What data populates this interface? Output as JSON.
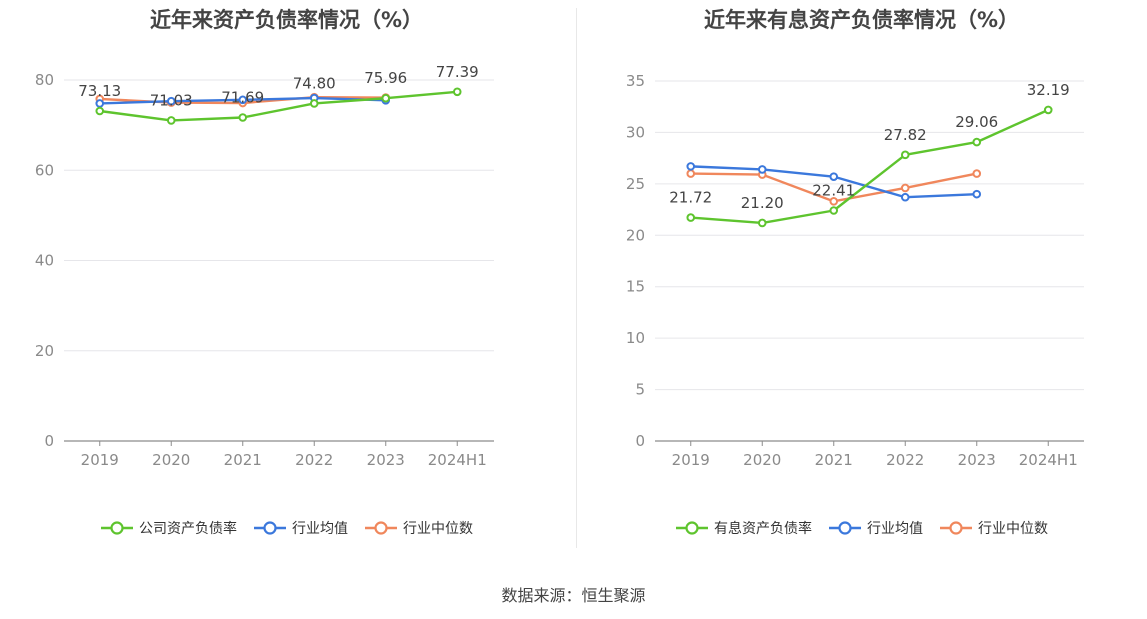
{
  "source_label": "数据来源：恒生聚源",
  "chart_data": [
    {
      "type": "line",
      "title": "近年来资产负债率情况（%）",
      "categories": [
        "2019",
        "2020",
        "2021",
        "2022",
        "2023",
        "2024H1"
      ],
      "ylim": [
        0,
        80
      ],
      "yticks": [
        0,
        20,
        40,
        60,
        80
      ],
      "grid": true,
      "legend_position": "bottom",
      "series": [
        {
          "name": "公司资产负债率",
          "color": "#5ec42e",
          "values": [
            73.13,
            71.03,
            71.69,
            74.8,
            75.96,
            77.39
          ],
          "labels": [
            "73.13",
            "71.03",
            "71.69",
            "74.80",
            "75.96",
            "77.39"
          ]
        },
        {
          "name": "行业均值",
          "color": "#3b78dc",
          "values": [
            74.8,
            75.3,
            75.6,
            76.0,
            75.5,
            null
          ]
        },
        {
          "name": "行业中位数",
          "color": "#f0875c",
          "values": [
            75.8,
            75.0,
            74.9,
            76.2,
            76.1,
            null
          ]
        }
      ]
    },
    {
      "type": "line",
      "title": "近年来有息资产负债率情况（%）",
      "categories": [
        "2019",
        "2020",
        "2021",
        "2022",
        "2023",
        "2024H1"
      ],
      "ylim": [
        0,
        35
      ],
      "yticks": [
        0,
        5,
        10,
        15,
        20,
        25,
        30,
        35
      ],
      "grid": true,
      "legend_position": "bottom",
      "series": [
        {
          "name": "有息资产负债率",
          "color": "#5ec42e",
          "values": [
            21.72,
            21.2,
            22.41,
            27.82,
            29.06,
            32.19
          ],
          "labels": [
            "21.72",
            "21.20",
            "22.41",
            "27.82",
            "29.06",
            "32.19"
          ]
        },
        {
          "name": "行业均值",
          "color": "#3b78dc",
          "values": [
            26.7,
            26.4,
            25.7,
            23.7,
            24.0,
            null
          ]
        },
        {
          "name": "行业中位数",
          "color": "#f0875c",
          "values": [
            26.0,
            25.9,
            23.3,
            24.6,
            26.0,
            null
          ]
        }
      ]
    }
  ]
}
